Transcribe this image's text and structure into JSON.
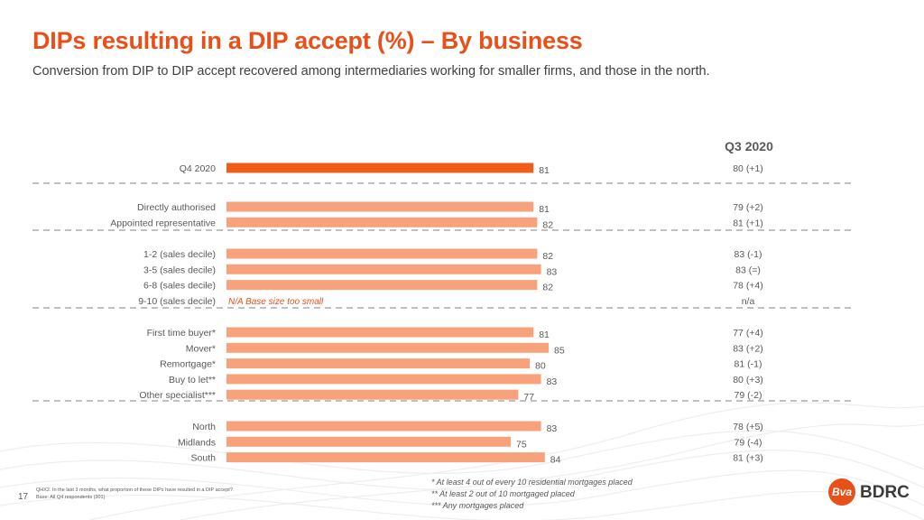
{
  "title": "DIPs resulting in a DIP accept (%) – By business",
  "subtitle": "Conversion from DIP to DIP accept recovered among intermediaries working for smaller firms, and those in the north.",
  "column_header": "Q3 2020",
  "colors": {
    "accent": "#e8501a",
    "bar_main": "#f25c19",
    "bar_light": "#f7a27a",
    "text": "#595959",
    "na_text": "#e8501a"
  },
  "chart_data": {
    "type": "bar",
    "orientation": "horizontal",
    "xlim": [
      0,
      100
    ],
    "groups": [
      {
        "rows": [
          {
            "label": "Q4 2020",
            "value": 81,
            "value_label": "81",
            "q3": "80 (+1)",
            "highlight": true
          }
        ]
      },
      {
        "rows": [
          {
            "label": "Directly authorised",
            "value": 81,
            "value_label": "81",
            "q3": "79 (+2)"
          },
          {
            "label": "Appointed representative",
            "value": 82,
            "value_label": "82",
            "q3": "81 (+1)"
          }
        ]
      },
      {
        "rows": [
          {
            "label": "1-2 (sales decile)",
            "value": 82,
            "value_label": "82",
            "q3": "83 (-1)"
          },
          {
            "label": "3-5 (sales decile)",
            "value": 83,
            "value_label": "83",
            "q3": "83 (=)"
          },
          {
            "label": "6-8 (sales decile)",
            "value": 82,
            "value_label": "82",
            "q3": "78 (+4)"
          },
          {
            "label": "9-10 (sales decile)",
            "value": null,
            "value_label": "N/A Base size too small",
            "q3": "n/a"
          }
        ]
      },
      {
        "rows": [
          {
            "label": "First time buyer*",
            "value": 81,
            "value_label": "81",
            "q3": "77 (+4)"
          },
          {
            "label": "Mover*",
            "value": 85,
            "value_label": "85",
            "q3": "83 (+2)"
          },
          {
            "label": "Remortgage*",
            "value": 80,
            "value_label": "80",
            "q3": "81 (-1)"
          },
          {
            "label": "Buy to let**",
            "value": 83,
            "value_label": "83",
            "q3": "80 (+3)"
          },
          {
            "label": "Other specialist***",
            "value": 77,
            "value_label": "77",
            "q3": "79 (-2)"
          }
        ]
      },
      {
        "rows": [
          {
            "label": "North",
            "value": 83,
            "value_label": "83",
            "q3": "78 (+5)"
          },
          {
            "label": "Midlands",
            "value": 75,
            "value_label": "75",
            "q3": "79 (-4)"
          },
          {
            "label": "South",
            "value": 84,
            "value_label": "84",
            "q3": "81 (+3)"
          }
        ]
      }
    ]
  },
  "footnotes": {
    "question": "QHX2. In the last 3 months, what proportion of these DIPs have resulted in a DIP accept?",
    "base": "Base: All Q4 respondents (301)"
  },
  "notes": [
    "* At least 4 out of every 10 residential mortgages placed",
    "** At least 2 out of 10 mortgaged placed",
    "*** Any mortgages placed"
  ],
  "page_number": "17",
  "logo": {
    "mark": "Bva",
    "text": "BDRC"
  }
}
